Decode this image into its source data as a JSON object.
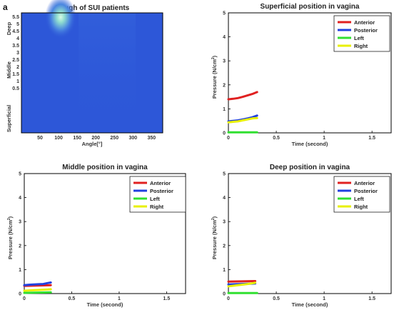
{
  "panel_label": "a",
  "chart_data": [
    {
      "type": "heatmap",
      "title": "Cough of SUI patients",
      "xlabel": "Angle[°]",
      "xticks": [
        "50",
        "100",
        "150",
        "200",
        "250",
        "300",
        "350"
      ],
      "yticks": [
        "5.5",
        "5",
        "4.5",
        "4",
        "3.5",
        "3",
        "2.5",
        "2",
        "1.5",
        "1",
        "0.5"
      ],
      "ycategories": [
        "Deep",
        "Middle",
        "Superficial"
      ],
      "colors": {
        "background": "#2d57d8",
        "hot": "#c8f5dc"
      }
    },
    {
      "type": "line",
      "title": "Superficial position in vagina",
      "xlabel": "Time (second)",
      "ylabel": "Pressure (N/cm",
      "ylabel_sup": "2",
      "ylabel_close": ")",
      "xlim": [
        0,
        1.7
      ],
      "ylim": [
        0,
        5
      ],
      "xticks": [
        "0",
        "0.5",
        "1",
        "1.5"
      ],
      "yticks": [
        "0",
        "1",
        "2",
        "3",
        "4",
        "5"
      ],
      "legend": [
        "Anterior",
        "Posterior",
        "Left",
        "Right"
      ],
      "series": [
        {
          "name": "Anterior",
          "color": "#e02020",
          "x": [
            0,
            0.05,
            0.1,
            0.15,
            0.2,
            0.25,
            0.3
          ],
          "y": [
            1.4,
            1.42,
            1.45,
            1.5,
            1.56,
            1.62,
            1.7
          ]
        },
        {
          "name": "Posterior",
          "color": "#2040e0",
          "x": [
            0,
            0.05,
            0.1,
            0.15,
            0.2,
            0.25,
            0.3
          ],
          "y": [
            0.48,
            0.5,
            0.52,
            0.56,
            0.6,
            0.65,
            0.72
          ]
        },
        {
          "name": "Left",
          "color": "#30e030",
          "x": [
            0,
            0.3
          ],
          "y": [
            0.02,
            0.02
          ]
        },
        {
          "name": "Right",
          "color": "#e8f000",
          "x": [
            0,
            0.05,
            0.1,
            0.15,
            0.2,
            0.25,
            0.3
          ],
          "y": [
            0.44,
            0.46,
            0.48,
            0.52,
            0.56,
            0.6,
            0.62
          ]
        }
      ]
    },
    {
      "type": "line",
      "title": "Middle position in vagina",
      "xlabel": "Time (second)",
      "ylabel": "Pressure (N/cm",
      "ylabel_sup": "2",
      "ylabel_close": ")",
      "xlim": [
        0,
        1.7
      ],
      "ylim": [
        0,
        5
      ],
      "xticks": [
        "0",
        "0.5",
        "1",
        "1.5"
      ],
      "yticks": [
        "0",
        "1",
        "2",
        "3",
        "4",
        "5"
      ],
      "legend": [
        "Anterior",
        "Posterior",
        "Left",
        "Right"
      ],
      "series": [
        {
          "name": "Anterior",
          "color": "#e02020",
          "x": [
            0,
            0.28
          ],
          "y": [
            0.32,
            0.35
          ]
        },
        {
          "name": "Posterior",
          "color": "#2040e0",
          "x": [
            0,
            0.05,
            0.1,
            0.15,
            0.2,
            0.25,
            0.28
          ],
          "y": [
            0.35,
            0.37,
            0.38,
            0.39,
            0.4,
            0.44,
            0.46
          ]
        },
        {
          "name": "Left",
          "color": "#30e030",
          "x": [
            0,
            0.28
          ],
          "y": [
            0.03,
            0.05
          ]
        },
        {
          "name": "Right",
          "color": "#e8f000",
          "x": [
            0,
            0.05,
            0.1,
            0.15,
            0.2,
            0.25,
            0.28
          ],
          "y": [
            0.12,
            0.13,
            0.14,
            0.15,
            0.16,
            0.17,
            0.18
          ]
        }
      ]
    },
    {
      "type": "line",
      "title": "Deep position in vagina",
      "xlabel": "Time (second)",
      "ylabel": "Pressure (N/cm",
      "ylabel_sup": "2",
      "ylabel_close": ")",
      "xlim": [
        0,
        1.7
      ],
      "ylim": [
        0,
        5
      ],
      "xticks": [
        "0",
        "0.5",
        "1",
        "1.5"
      ],
      "yticks": [
        "0",
        "1",
        "2",
        "3",
        "4",
        "5"
      ],
      "legend": [
        "Anterior",
        "Posterior",
        "Left",
        "Right"
      ],
      "series": [
        {
          "name": "Anterior",
          "color": "#e02020",
          "x": [
            0,
            0.28
          ],
          "y": [
            0.5,
            0.52
          ]
        },
        {
          "name": "Posterior",
          "color": "#2040e0",
          "x": [
            0,
            0.28
          ],
          "y": [
            0.38,
            0.42
          ]
        },
        {
          "name": "Left",
          "color": "#30e030",
          "x": [
            0,
            0.3
          ],
          "y": [
            0.02,
            0.02
          ]
        },
        {
          "name": "Right",
          "color": "#e8f000",
          "x": [
            0,
            0.1,
            0.2,
            0.28
          ],
          "y": [
            0.3,
            0.35,
            0.4,
            0.45
          ]
        }
      ]
    }
  ]
}
